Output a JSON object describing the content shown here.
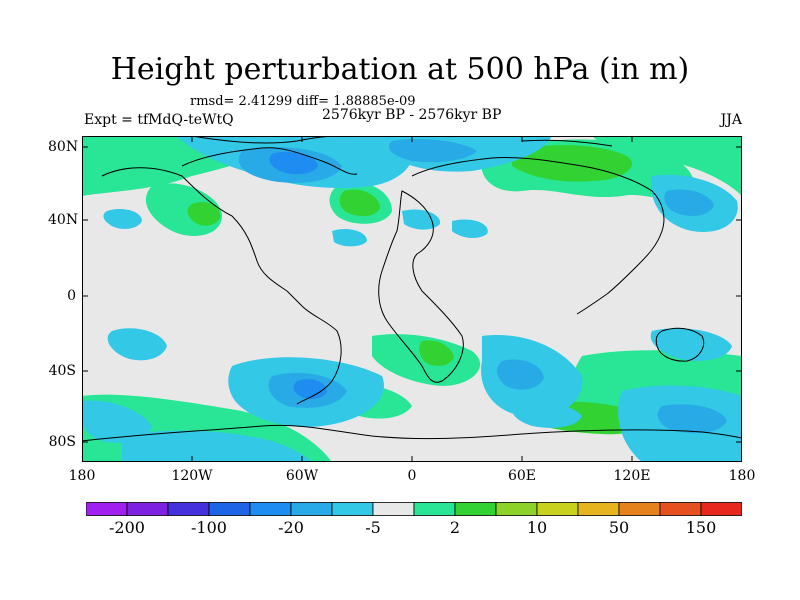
{
  "title": "Height perturbation at 500 hPa (in m)",
  "stats": "rmsd= 2.41299 diff= 1.88885e-09",
  "period": "2576kyr BP - 2576kyr BP",
  "experiment": "Expt = tfMdQ-teWtQ",
  "season": "JJA",
  "axes": {
    "lat_labels": [
      "80N",
      "40N",
      "0",
      "40S",
      "80S"
    ],
    "lon_labels": [
      "180",
      "120W",
      "60W",
      "0",
      "60E",
      "120E",
      "180"
    ]
  },
  "colorbar": {
    "labels": [
      "-200",
      "-100",
      "-20",
      "-5",
      "2",
      "10",
      "50",
      "150"
    ],
    "colors": [
      "#a020f0",
      "#7d22e0",
      "#4632dc",
      "#1e64e6",
      "#1e8cf0",
      "#28aae6",
      "#32c8e6",
      "#e8e8e8",
      "#28e696",
      "#32d232",
      "#8cd228",
      "#c8d21e",
      "#e6b41e",
      "#e6821e",
      "#e6501e",
      "#e6281e"
    ]
  },
  "colors": {
    "neutral": "#e8e8e8",
    "light_green": "#28e696",
    "green": "#32d232",
    "cyan": "#32c8e6",
    "light_blue": "#28aae6",
    "blue": "#1e8cf0",
    "coast": "#000000"
  }
}
